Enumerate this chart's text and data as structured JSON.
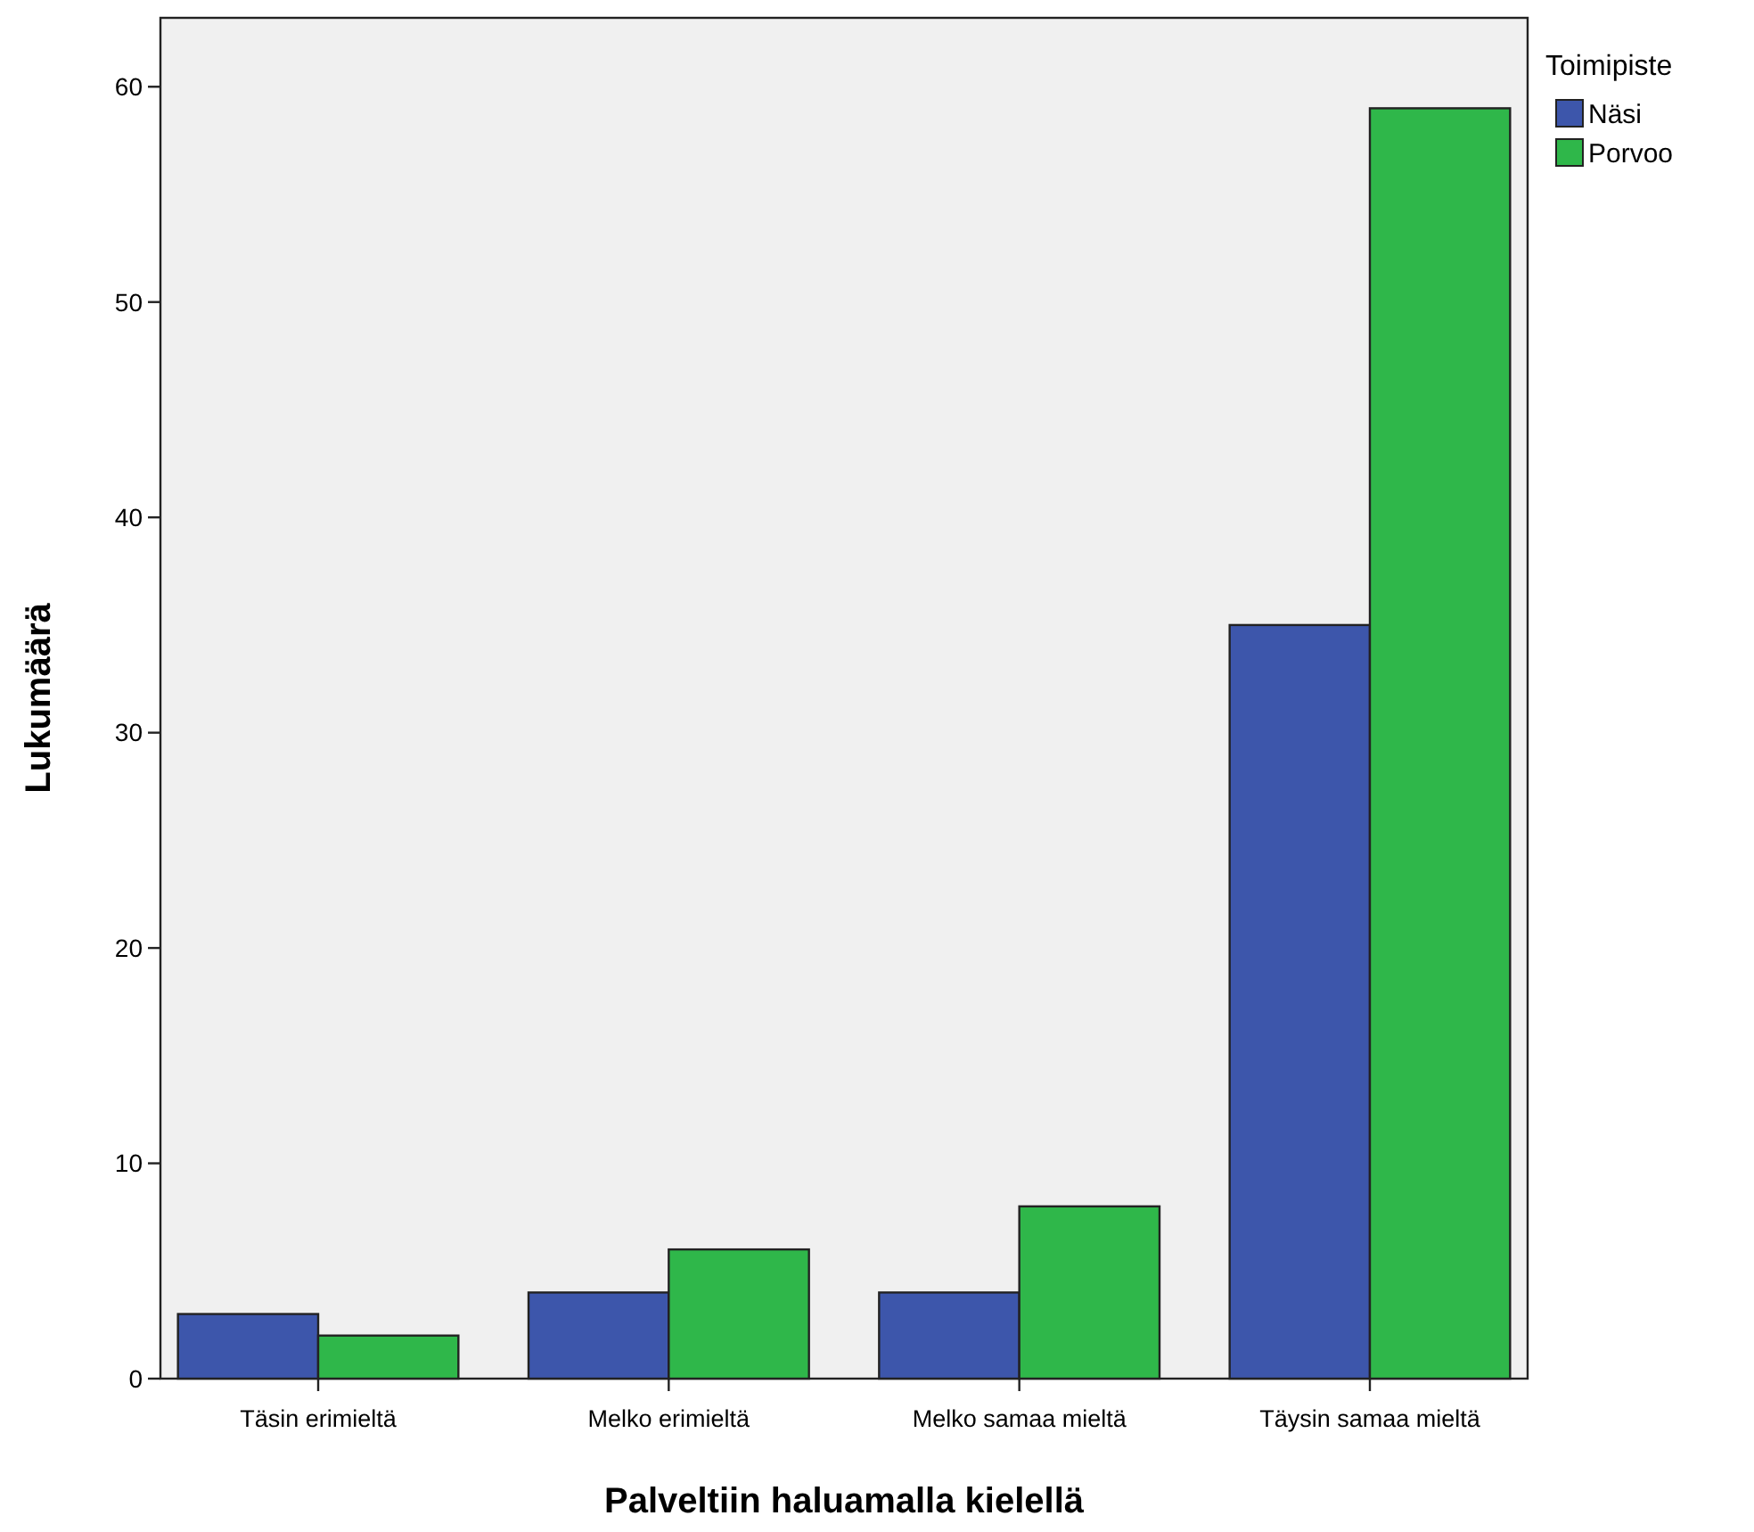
{
  "chart_data": {
    "type": "bar",
    "xlabel": "Palveltiin haluamalla kielellä",
    "ylabel": "Lukumäärä",
    "legend_title": "Toimipiste",
    "legend": "top right",
    "grid": false,
    "categories": [
      "Täsin erimieltä",
      "Melko erimieltä",
      "Melko samaa mieltä",
      "Täysin samaa mieltä"
    ],
    "series": [
      {
        "name": "Näsi",
        "color": "#3d56ab",
        "values": [
          3,
          4,
          4,
          35
        ]
      },
      {
        "name": "Porvoo",
        "color": "#2fb74a",
        "values": [
          2,
          6,
          8,
          59
        ]
      }
    ],
    "ylim": [
      0,
      63.2
    ],
    "yticks": [
      0,
      10,
      20,
      30,
      40,
      50,
      60
    ]
  }
}
